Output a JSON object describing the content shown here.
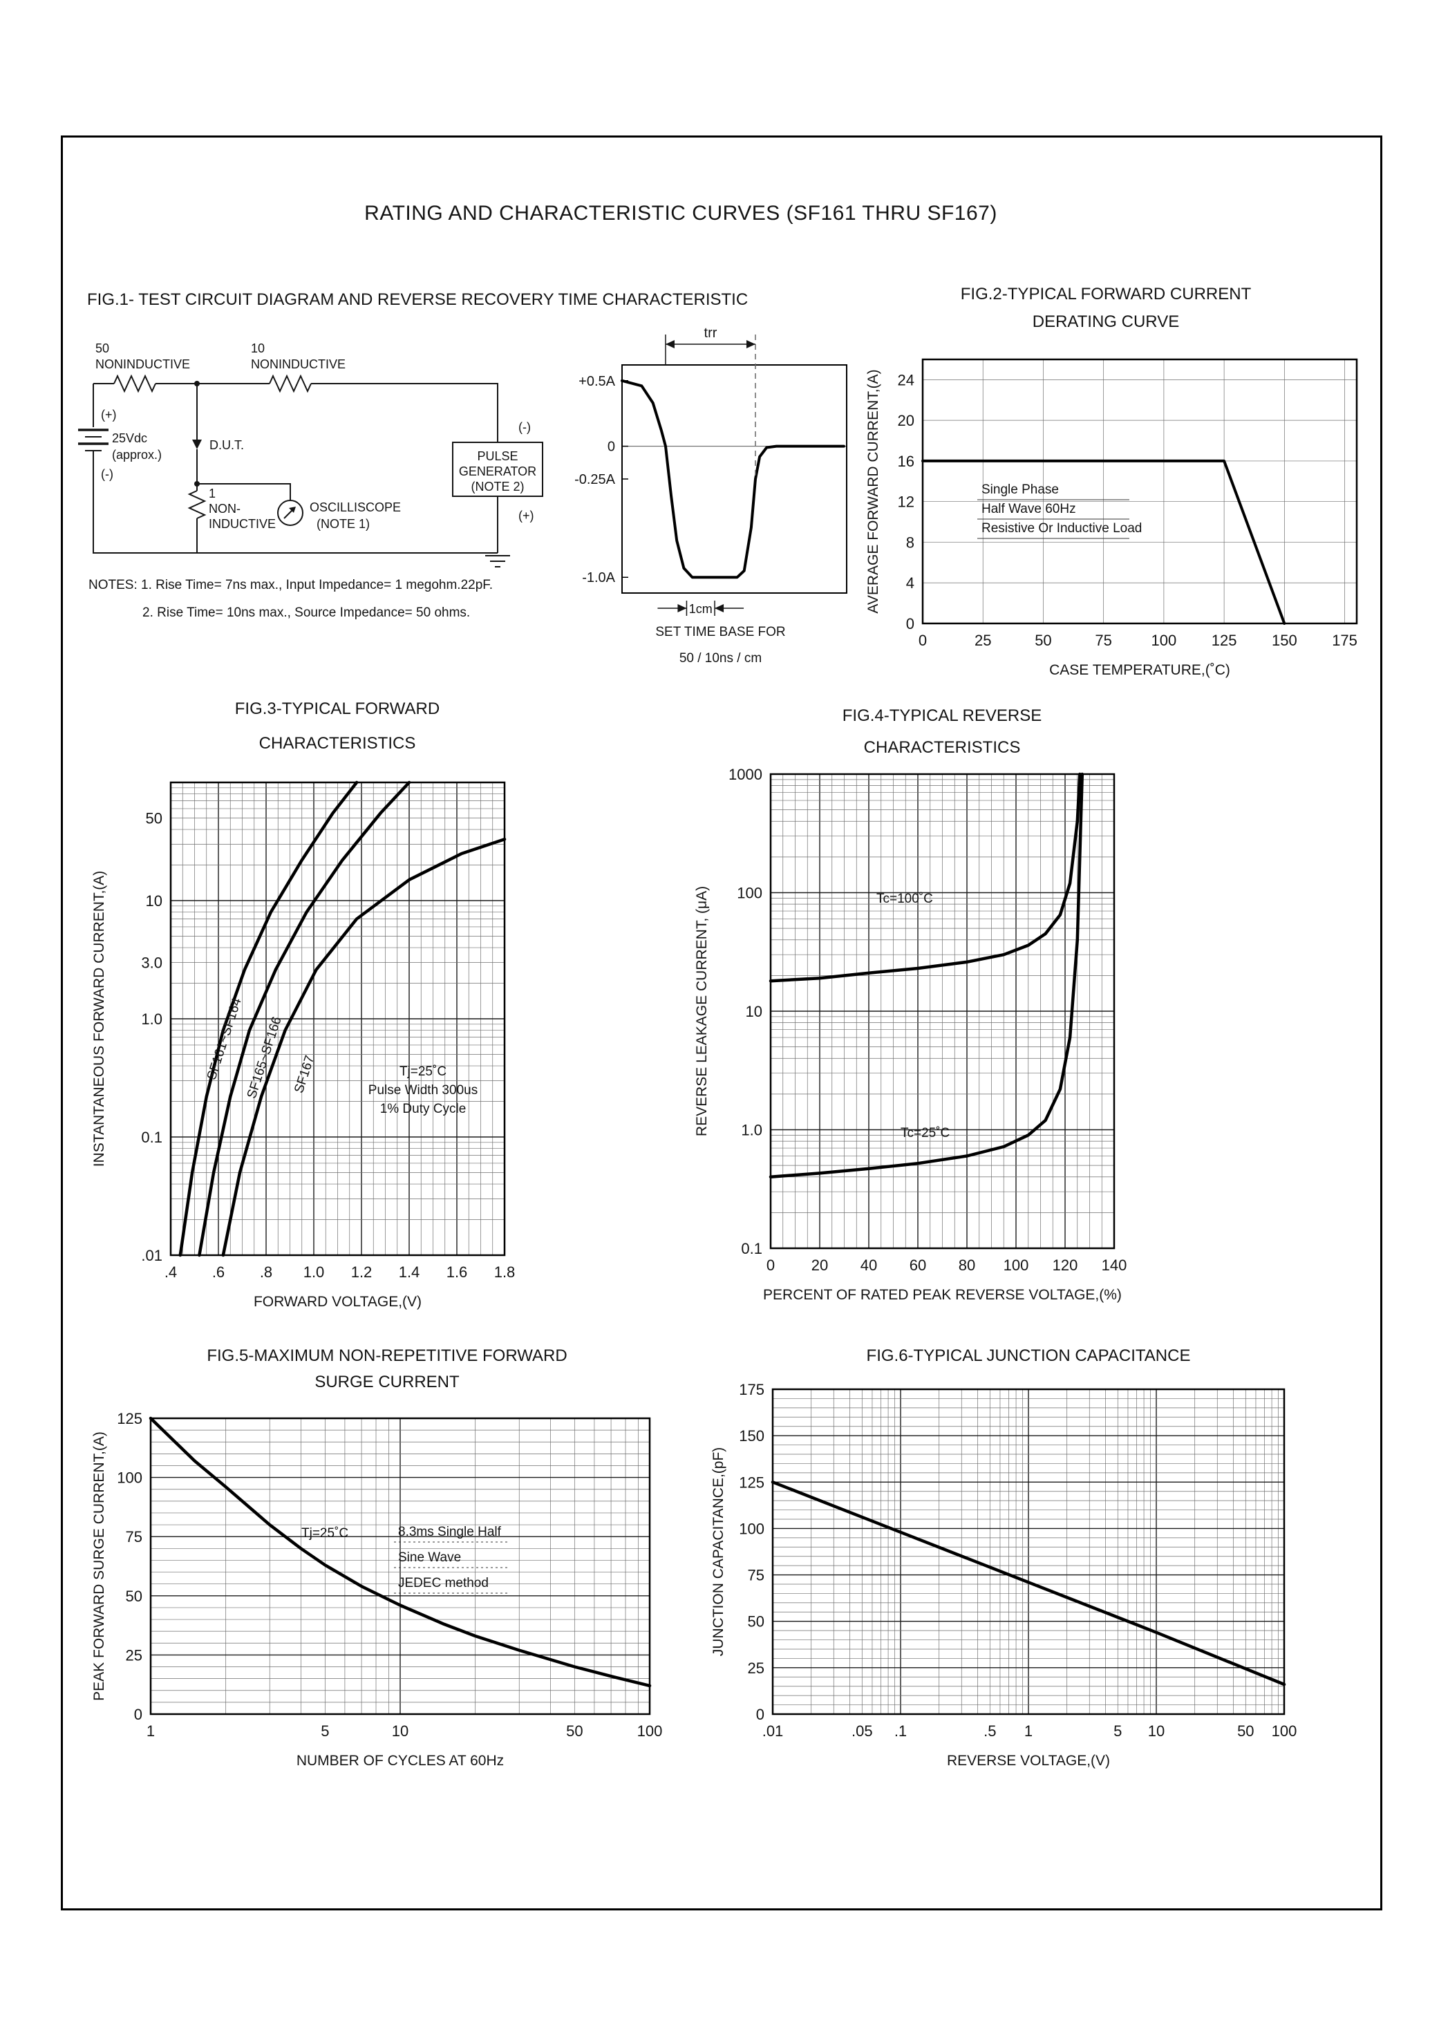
{
  "page": {
    "title": "RATING AND CHARACTERISTIC CURVES (SF161 THRU SF167)"
  },
  "fig1": {
    "title": "FIG.1- TEST CIRCUIT DIAGRAM AND REVERSE RECOVERY TIME CHARACTERISTIC",
    "circuit": {
      "r1_value": "50",
      "r1_type": "NONINDUCTIVE",
      "r2_value": "10",
      "r2_type": "NONINDUCTIVE",
      "battery_plus": "(+)",
      "battery_v": "25Vdc",
      "battery_approx": "(approx.)",
      "battery_minus": "(-)",
      "dut": "D.U.T.",
      "r3_value": "1",
      "r3_line1": "NON-",
      "r3_line2": "INDUCTIVE",
      "scope_line1": "OSCILLISCOPE",
      "scope_line2": "(NOTE 1)",
      "pg_minus": "(-)",
      "pg_line1": "PULSE",
      "pg_line2": "GENERATOR",
      "pg_line3": "(NOTE 2)",
      "pg_plus": "(+)"
    },
    "notes1": "NOTES: 1. Rise Time= 7ns max., Input Impedance= 1 megohm.22pF.",
    "notes2": "2. Rise Time= 10ns max., Source Impedance= 50 ohms."
  },
  "chart_data": [
    {
      "id": "waveform",
      "type": "line",
      "trr_label": "trr",
      "cm_label": "1cm",
      "caption1": "SET TIME BASE FOR",
      "caption2": "50 / 10ns / cm",
      "xlim": [
        0,
        8
      ],
      "ylim": [
        -1.12,
        0.62
      ],
      "ylabels": [
        {
          "v": 0.5,
          "l": "+0.5A"
        },
        {
          "v": 0,
          "l": "0"
        },
        {
          "v": -0.25,
          "l": "-0.25A"
        },
        {
          "v": -1.0,
          "l": "-1.0A"
        }
      ],
      "trr_span": [
        1.55,
        4.75
      ],
      "cm_span": [
        2.3,
        3.3
      ],
      "series": [
        {
          "name": "reverse-recovery",
          "points": [
            [
              0,
              0.5
            ],
            [
              0.7,
              0.46
            ],
            [
              1.1,
              0.33
            ],
            [
              1.4,
              0.12
            ],
            [
              1.55,
              0
            ],
            [
              1.75,
              -0.38
            ],
            [
              1.95,
              -0.72
            ],
            [
              2.2,
              -0.93
            ],
            [
              2.5,
              -1.0
            ],
            [
              4.1,
              -1.0
            ],
            [
              4.35,
              -0.95
            ],
            [
              4.6,
              -0.62
            ],
            [
              4.75,
              -0.25
            ],
            [
              4.9,
              -0.08
            ],
            [
              5.15,
              -0.01
            ],
            [
              5.5,
              0
            ],
            [
              7.9,
              0
            ]
          ]
        }
      ]
    },
    {
      "id": "fig2",
      "type": "line",
      "title": "FIG.2-TYPICAL FORWARD CURRENT",
      "title2": "DERATING CURVE",
      "xlabel": "CASE TEMPERATURE,(˚C)",
      "ylabel": "AVERAGE FORWARD CURRENT,(A)",
      "xscale": "linear",
      "yscale": "linear",
      "xlim": [
        0,
        180
      ],
      "ylim": [
        0,
        26
      ],
      "xtick_vals": [
        0,
        25,
        50,
        75,
        100,
        125,
        150,
        175
      ],
      "xtick_labels": [
        "0",
        "25",
        "50",
        "75",
        "100",
        "125",
        "150",
        "175"
      ],
      "ytick_vals": [
        0,
        4,
        8,
        12,
        16,
        20,
        24
      ],
      "ytick_labels": [
        "0",
        "4",
        "8",
        "12",
        "16",
        "20",
        "24"
      ],
      "series": [
        {
          "name": "derating-curve",
          "points": [
            [
              0,
              16
            ],
            [
              125,
              16
            ],
            [
              150,
              0
            ]
          ]
        }
      ],
      "annotations": [
        "Single Phase",
        "Half Wave 60Hz",
        "Resistive Or Inductive Load"
      ]
    },
    {
      "id": "fig3",
      "type": "line",
      "title": "FIG.3-TYPICAL FORWARD",
      "title2": "CHARACTERISTICS",
      "xlabel": "FORWARD VOLTAGE,(V)",
      "ylabel": "INSTANTANEOUS FORWARD CURRENT,(A)",
      "xscale": "linear",
      "yscale": "log",
      "xlim": [
        0.4,
        1.8
      ],
      "ylim": [
        0.01,
        100
      ],
      "xtick_vals": [
        0.4,
        0.6,
        0.8,
        1.0,
        1.2,
        1.4,
        1.6,
        1.8
      ],
      "xtick_labels": [
        ".4",
        ".6",
        ".8",
        "1.0",
        "1.2",
        "1.4",
        "1.6",
        "1.8"
      ],
      "ytick_vals": [
        50,
        10,
        3.0,
        1.0,
        0.1,
        0.01
      ],
      "ytick_labels": [
        "50",
        "10",
        "3.0",
        "1.0",
        "0.1",
        ".01"
      ],
      "series": [
        {
          "name": "SF161~SF164",
          "points": [
            [
              0.44,
              0.01
            ],
            [
              0.49,
              0.05
            ],
            [
              0.55,
              0.22
            ],
            [
              0.62,
              0.8
            ],
            [
              0.71,
              2.6
            ],
            [
              0.82,
              8
            ],
            [
              0.95,
              22
            ],
            [
              1.08,
              55
            ],
            [
              1.18,
              100
            ]
          ]
        },
        {
          "name": "SF165~SF166",
          "points": [
            [
              0.52,
              0.01
            ],
            [
              0.58,
              0.05
            ],
            [
              0.65,
              0.22
            ],
            [
              0.73,
              0.8
            ],
            [
              0.84,
              2.6
            ],
            [
              0.97,
              8
            ],
            [
              1.12,
              22
            ],
            [
              1.28,
              55
            ],
            [
              1.4,
              100
            ]
          ]
        },
        {
          "name": "SF167",
          "points": [
            [
              0.62,
              0.01
            ],
            [
              0.69,
              0.05
            ],
            [
              0.78,
              0.22
            ],
            [
              0.88,
              0.8
            ],
            [
              1.01,
              2.6
            ],
            [
              1.18,
              7
            ],
            [
              1.4,
              15
            ],
            [
              1.62,
              25
            ],
            [
              1.8,
              33
            ]
          ]
        }
      ],
      "annotations": [
        "Tj=25˚C",
        "Pulse Width 300us",
        "1% Duty Cycle"
      ]
    },
    {
      "id": "fig4",
      "type": "line",
      "title": "FIG.4-TYPICAL REVERSE",
      "title2": "CHARACTERISTICS",
      "xlabel": "PERCENT OF RATED PEAK REVERSE VOLTAGE,(%)",
      "ylabel": "REVERSE LEAKAGE CURRENT, (μA)",
      "xscale": "linear",
      "yscale": "log",
      "xlim": [
        0,
        140
      ],
      "ylim": [
        0.1,
        1000
      ],
      "xtick_vals": [
        0,
        20,
        40,
        60,
        80,
        100,
        120,
        140
      ],
      "xtick_labels": [
        "0",
        "20",
        "40",
        "60",
        "80",
        "100",
        "120",
        "140"
      ],
      "ytick_vals": [
        1000,
        100,
        10,
        1.0,
        0.1
      ],
      "ytick_labels": [
        "1000",
        "100",
        "10",
        "1.0",
        "0.1"
      ],
      "series": [
        {
          "name": "Tc=100C",
          "points": [
            [
              0,
              18
            ],
            [
              20,
              19
            ],
            [
              40,
              21
            ],
            [
              60,
              23
            ],
            [
              80,
              26
            ],
            [
              95,
              30
            ],
            [
              105,
              36
            ],
            [
              112,
              45
            ],
            [
              118,
              65
            ],
            [
              122,
              120
            ],
            [
              125,
              400
            ],
            [
              126,
              1000
            ]
          ]
        },
        {
          "name": "Tc=25C",
          "points": [
            [
              0,
              0.4
            ],
            [
              20,
              0.43
            ],
            [
              40,
              0.47
            ],
            [
              60,
              0.52
            ],
            [
              80,
              0.6
            ],
            [
              95,
              0.72
            ],
            [
              105,
              0.9
            ],
            [
              112,
              1.2
            ],
            [
              118,
              2.2
            ],
            [
              122,
              6
            ],
            [
              125,
              40
            ],
            [
              127,
              1000
            ]
          ]
        }
      ],
      "annotations": [
        "Tc=100˚C",
        "Tc=25˚C"
      ]
    },
    {
      "id": "fig5",
      "type": "line",
      "title": "FIG.5-MAXIMUM NON-REPETITIVE FORWARD",
      "title2": "SURGE CURRENT",
      "xlabel": "NUMBER OF CYCLES AT 60Hz",
      "ylabel": "PEAK FORWARD SURGE CURRENT,(A)",
      "xscale": "log",
      "yscale": "linear",
      "xlim": [
        1,
        100
      ],
      "ylim": [
        0,
        125
      ],
      "xtick_vals": [
        1,
        5,
        10,
        50,
        100
      ],
      "xtick_labels": [
        "1",
        "5",
        "10",
        "50",
        "100"
      ],
      "ytick_vals": [
        0,
        25,
        50,
        75,
        100,
        125
      ],
      "ytick_labels": [
        "0",
        "25",
        "50",
        "75",
        "100",
        "125"
      ],
      "series": [
        {
          "name": "surge-current",
          "points": [
            [
              1,
              125
            ],
            [
              1.5,
              107
            ],
            [
              2,
              96
            ],
            [
              3,
              80
            ],
            [
              4,
              70
            ],
            [
              5,
              63
            ],
            [
              7,
              54
            ],
            [
              10,
              46
            ],
            [
              15,
              38
            ],
            [
              20,
              33
            ],
            [
              30,
              27
            ],
            [
              50,
              20
            ],
            [
              70,
              16
            ],
            [
              100,
              12
            ]
          ]
        }
      ],
      "annotations": [
        "Tj=25˚C",
        "8.3ms Single Half",
        "Sine Wave",
        "JEDEC method"
      ]
    },
    {
      "id": "fig6",
      "type": "line",
      "title": "FIG.6-TYPICAL JUNCTION CAPACITANCE",
      "xlabel": "REVERSE VOLTAGE,(V)",
      "ylabel": "JUNCTION CAPACITANCE,(pF)",
      "xscale": "log",
      "yscale": "linear",
      "xlim": [
        0.01,
        100
      ],
      "ylim": [
        0,
        175
      ],
      "xtick_vals": [
        0.01,
        0.05,
        0.1,
        0.5,
        1,
        5,
        10,
        50,
        100
      ],
      "xtick_labels": [
        ".01",
        ".05",
        ".1",
        ".5",
        "1",
        "5",
        "10",
        "50",
        "100"
      ],
      "ytick_vals": [
        0,
        25,
        50,
        75,
        100,
        125,
        150,
        175
      ],
      "ytick_labels": [
        "0",
        "25",
        "50",
        "75",
        "100",
        "125",
        "150",
        "175"
      ],
      "series": [
        {
          "name": "junction-capacitance",
          "points": [
            [
              0.01,
              125
            ],
            [
              0.1,
              98
            ],
            [
              1,
              71
            ],
            [
              10,
              44
            ],
            [
              100,
              16
            ]
          ]
        }
      ],
      "annotations": []
    }
  ]
}
